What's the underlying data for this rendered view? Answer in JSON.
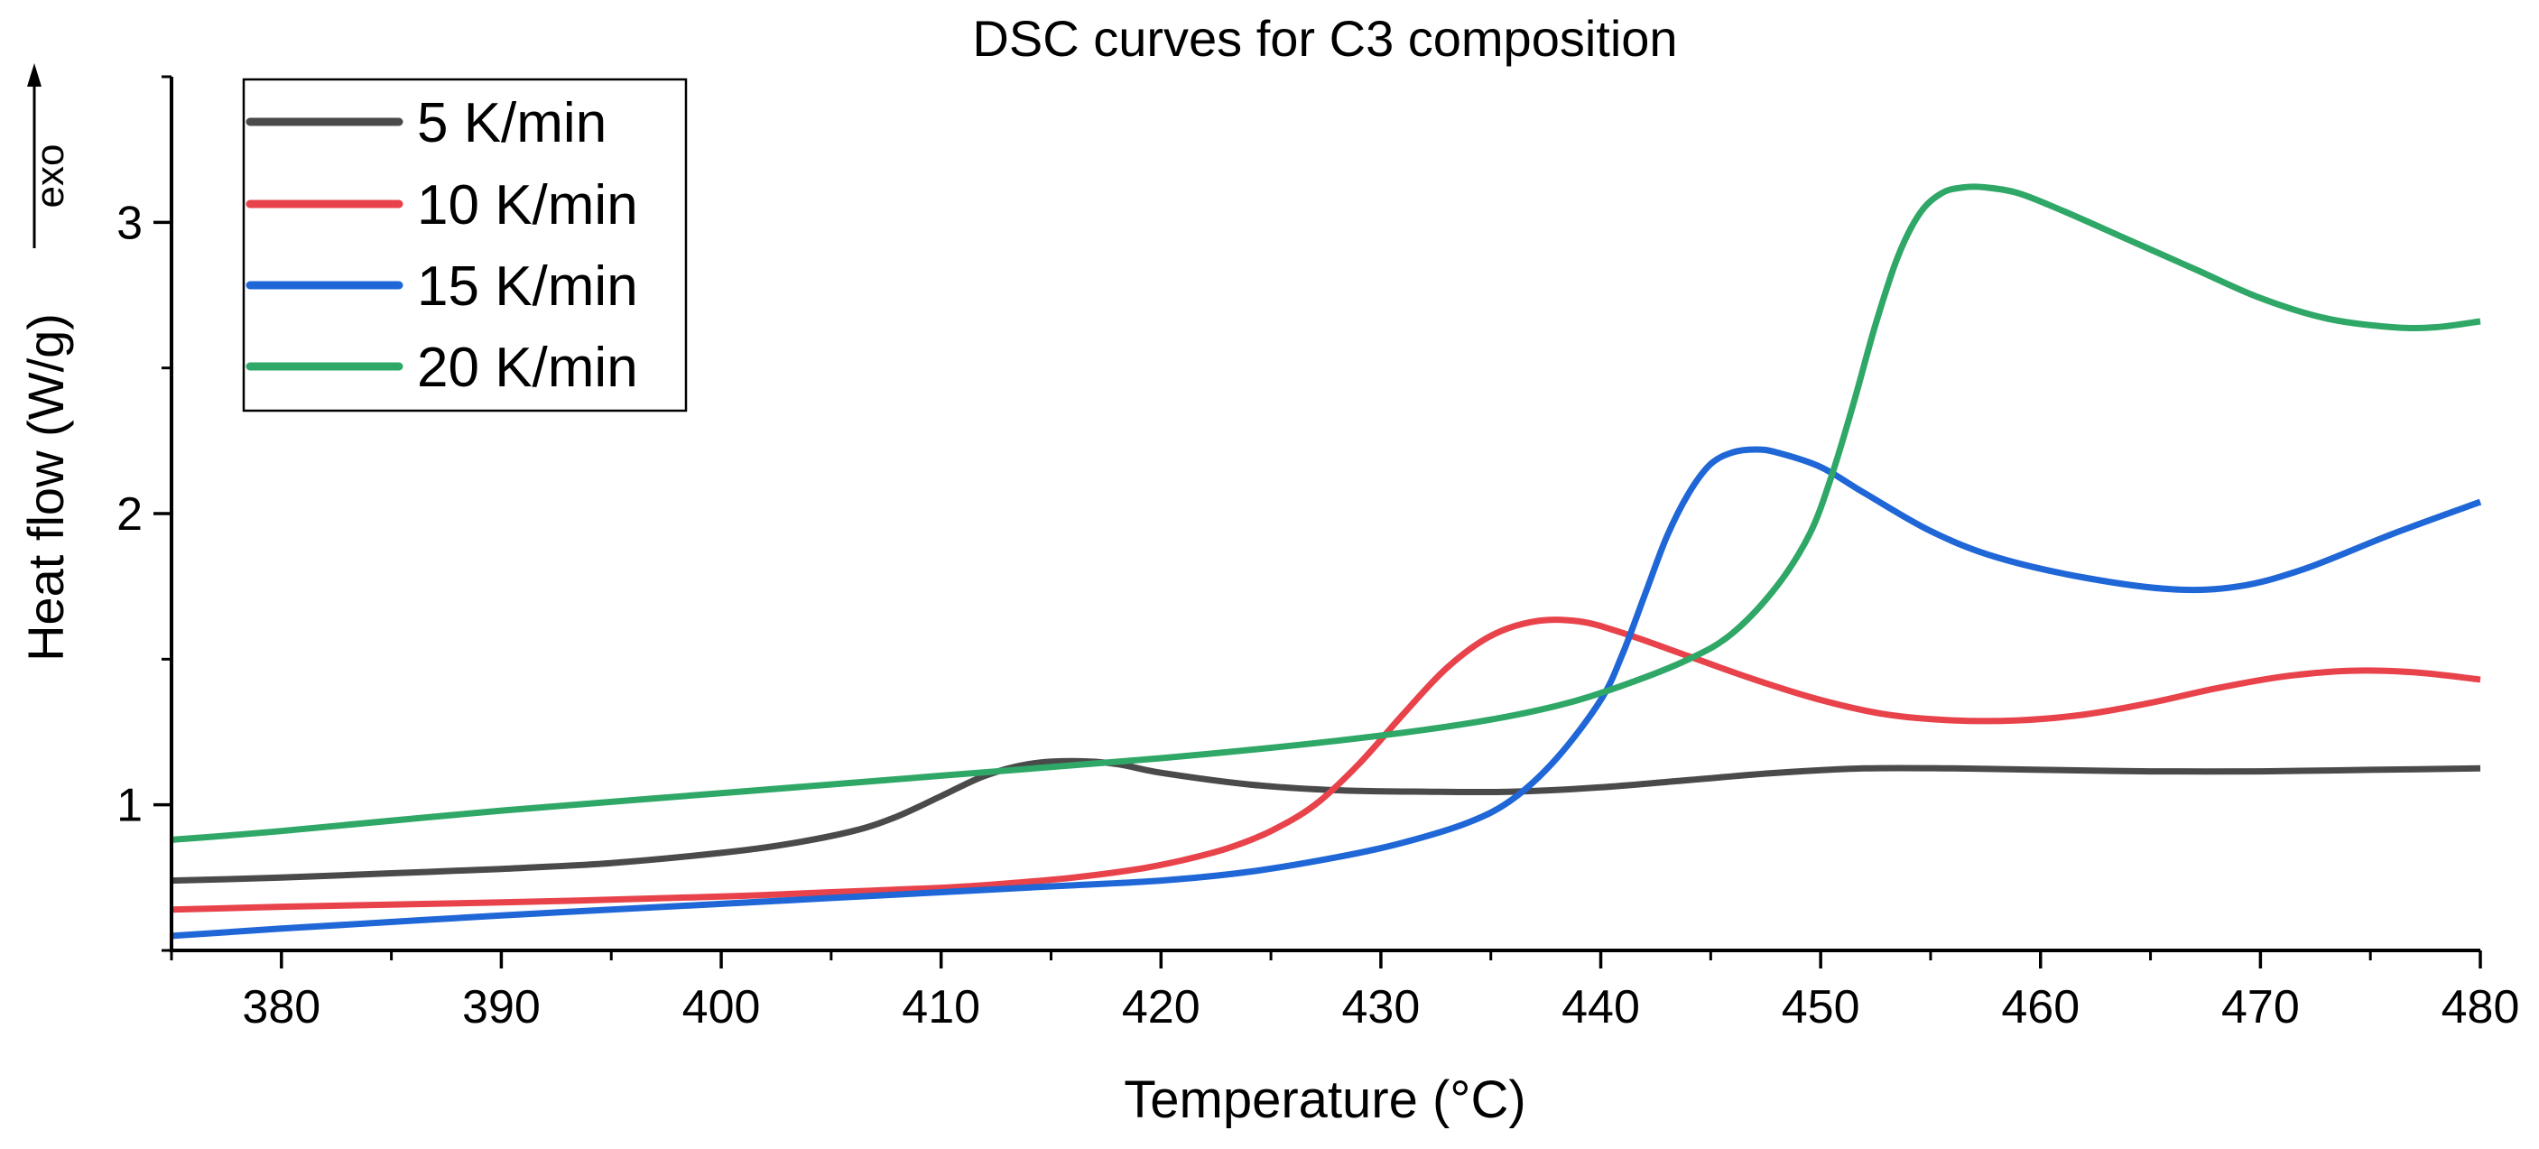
{
  "chart_data": {
    "type": "line",
    "title": "DSC curves for C3 composition",
    "xlabel": "Temperature (°C)",
    "ylabel": "Heat flow (W/g)",
    "exo_label": "exo",
    "xlim": [
      375,
      480
    ],
    "ylim": [
      0.5,
      3.5
    ],
    "x_ticks": [
      380,
      390,
      400,
      410,
      420,
      430,
      440,
      450,
      460,
      470,
      480
    ],
    "x_tick_labels": [
      "380",
      "390",
      "400",
      "410",
      "420",
      "430",
      "440",
      "450",
      "460",
      "470",
      "480"
    ],
    "y_ticks": [
      1,
      2,
      3
    ],
    "y_tick_labels": [
      "1",
      "2",
      "3"
    ],
    "grid": false,
    "legend_position": "top-left",
    "series": [
      {
        "name": "5 K/min",
        "color": "#4a4a4a",
        "x": [
          375,
          380,
          385,
          390,
          395,
          400,
          403,
          406,
          408,
          410,
          412,
          414,
          416,
          418,
          420,
          424,
          428,
          432,
          436,
          440,
          444,
          448,
          452,
          456,
          460,
          465,
          470,
          475,
          480
        ],
        "y": [
          0.74,
          0.75,
          0.765,
          0.78,
          0.8,
          0.835,
          0.865,
          0.91,
          0.96,
          1.03,
          1.1,
          1.14,
          1.15,
          1.14,
          1.11,
          1.07,
          1.05,
          1.045,
          1.045,
          1.06,
          1.085,
          1.11,
          1.125,
          1.125,
          1.12,
          1.115,
          1.115,
          1.12,
          1.125
        ]
      },
      {
        "name": "10 K/min",
        "color": "#e8424a",
        "x": [
          375,
          380,
          390,
          400,
          405,
          410,
          413,
          416,
          419,
          421,
          423,
          425,
          427,
          429,
          431,
          433,
          435,
          437,
          439,
          441,
          444,
          447,
          450,
          453,
          456,
          459,
          462,
          465,
          468,
          471,
          474,
          477,
          480
        ],
        "y": [
          0.64,
          0.65,
          0.665,
          0.685,
          0.7,
          0.715,
          0.73,
          0.75,
          0.78,
          0.81,
          0.85,
          0.91,
          1.0,
          1.14,
          1.31,
          1.47,
          1.58,
          1.63,
          1.63,
          1.59,
          1.51,
          1.43,
          1.36,
          1.31,
          1.29,
          1.29,
          1.31,
          1.35,
          1.4,
          1.44,
          1.46,
          1.455,
          1.43
        ]
      },
      {
        "name": "15 K/min",
        "color": "#1f66d6",
        "x": [
          375,
          380,
          390,
          400,
          405,
          410,
          415,
          420,
          424,
          428,
          431,
          434,
          436,
          438,
          440,
          441,
          442,
          443,
          444,
          445,
          446,
          447,
          448,
          450,
          452,
          455,
          458,
          462,
          466,
          469,
          472,
          476,
          480
        ],
        "y": [
          0.55,
          0.575,
          0.62,
          0.66,
          0.68,
          0.7,
          0.72,
          0.74,
          0.77,
          0.82,
          0.87,
          0.94,
          1.02,
          1.16,
          1.36,
          1.52,
          1.72,
          1.92,
          2.07,
          2.17,
          2.21,
          2.22,
          2.21,
          2.16,
          2.07,
          1.94,
          1.85,
          1.78,
          1.74,
          1.75,
          1.81,
          1.93,
          2.04
        ]
      },
      {
        "name": "20 K/min",
        "color": "#2fa766",
        "x": [
          375,
          380,
          390,
          400,
          410,
          420,
          428,
          434,
          438,
          441,
          444,
          446,
          448,
          449.5,
          450.5,
          451.5,
          452.5,
          453.5,
          454.5,
          455.5,
          456.5,
          457.5,
          459,
          461,
          464,
          467,
          470,
          473,
          476,
          478,
          480
        ],
        "y": [
          0.88,
          0.91,
          0.98,
          1.04,
          1.1,
          1.16,
          1.22,
          1.28,
          1.34,
          1.41,
          1.5,
          1.59,
          1.75,
          1.93,
          2.13,
          2.38,
          2.65,
          2.88,
          3.03,
          3.1,
          3.12,
          3.12,
          3.1,
          3.04,
          2.94,
          2.84,
          2.74,
          2.67,
          2.64,
          2.64,
          2.66
        ]
      }
    ]
  }
}
